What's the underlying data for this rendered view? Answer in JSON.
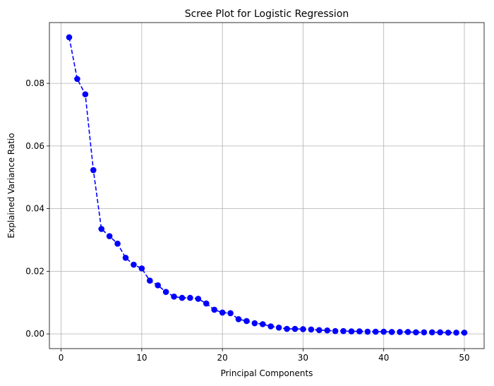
{
  "chart_data": {
    "type": "line",
    "title": "Scree Plot for Logistic Regression",
    "xlabel": "Principal Components",
    "ylabel": "Explained Variance Ratio",
    "xlim": [
      -1.45,
      52.45
    ],
    "ylim": [
      -0.0047,
      0.0994
    ],
    "xticks": [
      0,
      10,
      20,
      30,
      40,
      50
    ],
    "yticks": [
      0.0,
      0.02,
      0.04,
      0.06,
      0.08
    ],
    "ytick_labels": [
      "0.00",
      "0.02",
      "0.04",
      "0.06",
      "0.08"
    ],
    "grid": true,
    "line_style": "dashed",
    "marker": "circle",
    "color": "#0000ff",
    "series": [
      {
        "x": [
          1,
          2,
          3,
          4,
          5,
          6,
          7,
          8,
          9,
          10,
          11,
          12,
          13,
          14,
          15,
          16,
          17,
          18,
          19,
          20,
          21,
          22,
          23,
          24,
          25,
          26,
          27,
          28,
          29,
          30,
          31,
          32,
          33,
          34,
          35,
          36,
          37,
          38,
          39,
          40,
          41,
          42,
          43,
          44,
          45,
          46,
          47,
          48,
          49,
          50
        ],
        "values": [
          0.0947,
          0.0814,
          0.0765,
          0.0523,
          0.0335,
          0.0312,
          0.0288,
          0.0243,
          0.0221,
          0.0209,
          0.017,
          0.0155,
          0.0134,
          0.0119,
          0.0115,
          0.0115,
          0.0112,
          0.0097,
          0.0077,
          0.0068,
          0.0066,
          0.0047,
          0.0041,
          0.0034,
          0.0031,
          0.0024,
          0.002,
          0.0016,
          0.0016,
          0.0015,
          0.0014,
          0.0012,
          0.0011,
          0.0009,
          0.0009,
          0.0008,
          0.0008,
          0.0007,
          0.0007,
          0.0007,
          0.0006,
          0.0006,
          0.0006,
          0.0005,
          0.0005,
          0.0005,
          0.0005,
          0.0004,
          0.0004,
          0.0004
        ]
      }
    ]
  }
}
